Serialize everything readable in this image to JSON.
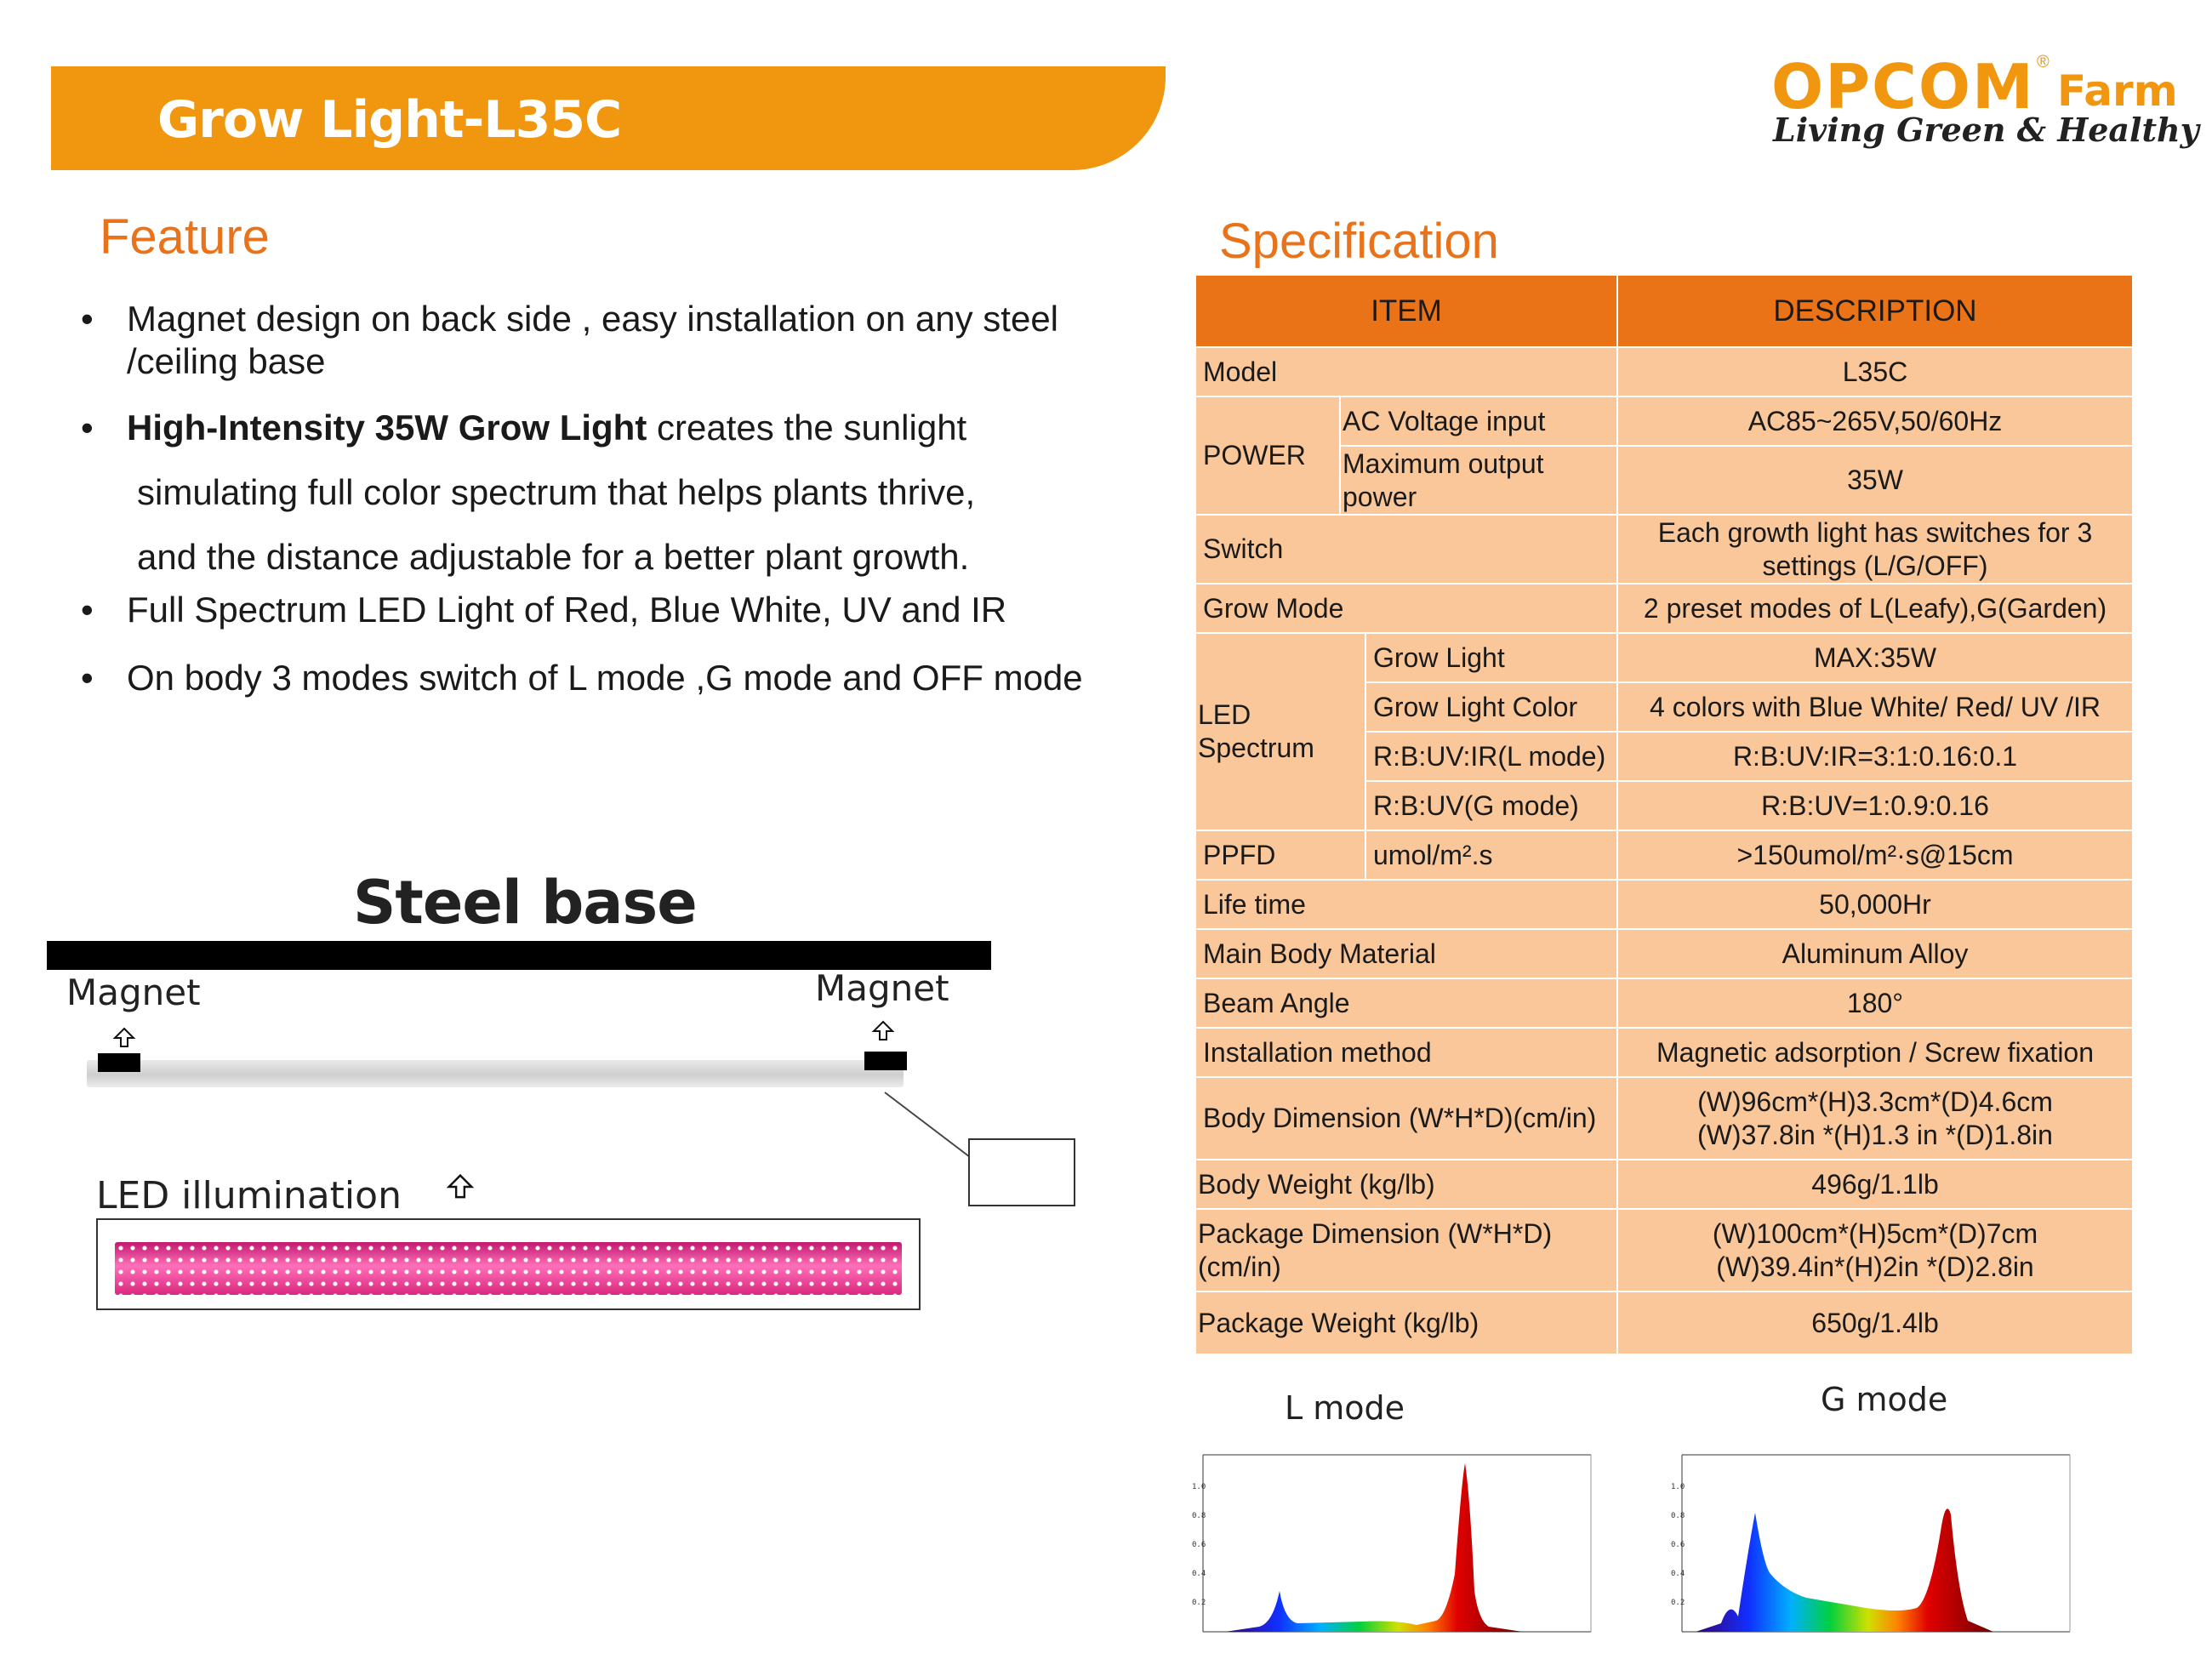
{
  "header": {
    "title": "Grow Light-L35C",
    "logo_brand": "OPCOM",
    "logo_reg": "®",
    "logo_farm": "Farm",
    "logo_slogan": "Living Green & Healthy"
  },
  "feature": {
    "title": "Feature",
    "b1": "Magnet design on back side , easy installation on any steel /ceiling base",
    "b2_bold": "High-Intensity 35W Grow Light",
    "b2_rest": " creates the sunlight",
    "b2_line2": "simulating full color spectrum that helps plants thrive,",
    "b2_line3": "and the distance adjustable for a better plant growth.",
    "b3": "Full Spectrum LED Light of Red, Blue White, UV and IR",
    "b4": "On body 3 modes switch of L mode ,G mode  and OFF mode"
  },
  "diagram": {
    "title": "Steel base",
    "magnet_left": "Magnet",
    "magnet_right": "Magnet",
    "led_label": "LED illumination"
  },
  "spec": {
    "title": "Specification",
    "header_item": "ITEM",
    "header_desc": "DESCRIPTION",
    "model_label": "Model",
    "model_value": "L35C",
    "power_label": "POWER",
    "ac_label": "AC Voltage input",
    "ac_value": "AC85~265V,50/60Hz",
    "max_label": "Maximum output power",
    "max_value": "35W",
    "switch_label": "Switch",
    "switch_value": "Each growth light has switches for 3 settings (L/G/OFF)",
    "grow_mode_label": "Grow Mode",
    "grow_mode_value": "2 preset modes of  L(Leafy),G(Garden)",
    "led_label": "LED Spectrum",
    "grow_light_label": "Grow Light",
    "grow_light_value": "MAX:35W",
    "grow_color_label": "Grow Light Color",
    "grow_color_value": "4 colors with Blue White/ Red/ UV /IR",
    "lmode_label": "R:B:UV:IR(L mode)",
    "lmode_value": "R:B:UV:IR=3:1:0.16:0.1",
    "gmode_label": "R:B:UV(G mode)",
    "gmode_value": "R:B:UV=1:0.9:0.16",
    "ppfd_label": "PPFD",
    "ppfd_unit": "umol/m².s",
    "ppfd_value": ">150umol/m²·s@15cm",
    "life_label": "Life time",
    "life_value": "50,000Hr",
    "material_label": "Main Body Material",
    "material_value": "Aluminum Alloy",
    "beam_label": "Beam Angle",
    "beam_value": "180°",
    "install_label": "Installation method",
    "install_value": "Magnetic adsorption /  Screw fixation",
    "body_dim_label": "Body Dimension (W*H*D)(cm/in)",
    "body_dim_value1": "(W)96cm*(H)3.3cm*(D)4.6cm",
    "body_dim_value2": "(W)37.8in *(H)1.3 in *(D)1.8in",
    "body_weight_label": "Body Weight (kg/lb)",
    "body_weight_value": "496g/1.1lb",
    "pkg_dim_label": "Package Dimension (W*H*D)(cm/in)",
    "pkg_dim_value1": "(W)100cm*(H)5cm*(D)7cm",
    "pkg_dim_value2": "(W)39.4in*(H)2in *(D)2.8in",
    "pkg_weight_label": "Package Weight (kg/lb)",
    "pkg_weight_value": "650g/1.4lb"
  },
  "modes": {
    "l_label": "L mode",
    "g_label": "G  mode"
  }
}
